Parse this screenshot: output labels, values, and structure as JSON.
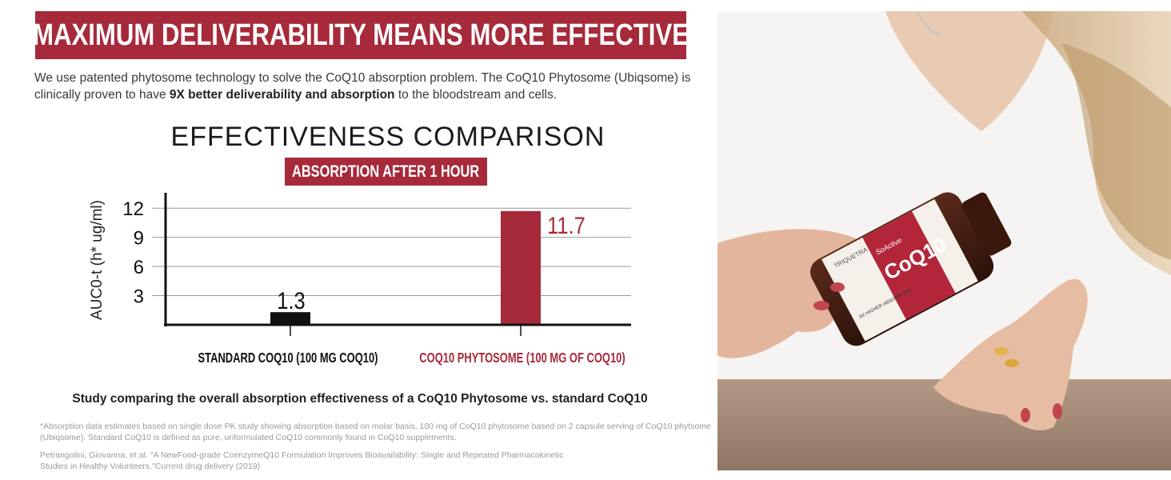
{
  "banner": {
    "title": "MAXIMUM DELIVERABILITY MEANS MORE EFFECTIVE"
  },
  "intro": {
    "text_before": "We use patented phytosome technology to solve the CoQ10 absorption problem. The CoQ10 Phytosome (Ubiqsome) is clinically proven to have ",
    "highlight": "9X better deliverability and absorption",
    "text_after": " to the bloodstream and cells."
  },
  "colors": {
    "accent": "#a62a3a",
    "bar_standard": "#111111",
    "grid": "#999999"
  },
  "chart_data": {
    "type": "bar",
    "title": "EFFECTIVENESS COMPARISON",
    "subtitle": "ABSORPTION AFTER 1 HOUR",
    "ylabel": "AUC0-t (h* ug/ml)",
    "xlabel": "",
    "ylim": [
      0,
      13.5
    ],
    "yticks": [
      3,
      6,
      9,
      12
    ],
    "grid": true,
    "categories": [
      "STANDARD COQ10 (100 MG COQ10)",
      "COQ10 PHYTOSOME (100 MG OF COQ10)"
    ],
    "values": [
      1.3,
      11.7
    ],
    "value_labels": [
      "1.3",
      "11.7"
    ]
  },
  "caption": "Study comparing the overall absorption effectiveness of a CoQ10 Phytosome vs. standard CoQ10",
  "footnotes": [
    "*Absorption data estimates based on single dose PK study showing absorption based on molar basis. 100 mg of CoQ10 phytosome based on 2 capsule serving of CoQ10 phytsome (Ubiqsome). Standard CoQ10 is defined as pure, unformulated CoQ10 commonly found in CoQ10 supplements.",
    "Petrangolini, Giovanna, et al. \"A NewFood-grade CoenzymeQ10 Formulation Improves Bioavailability: Single and Repeated Pharmacokinetic Studies in Healthy Volunteers.\"Current drug delivery (2019)"
  ],
  "product": {
    "brand": "TRIQUETRA",
    "line": "SoActive",
    "name": "CoQ10",
    "claim": "8X HIGHER ABSORPTION"
  }
}
